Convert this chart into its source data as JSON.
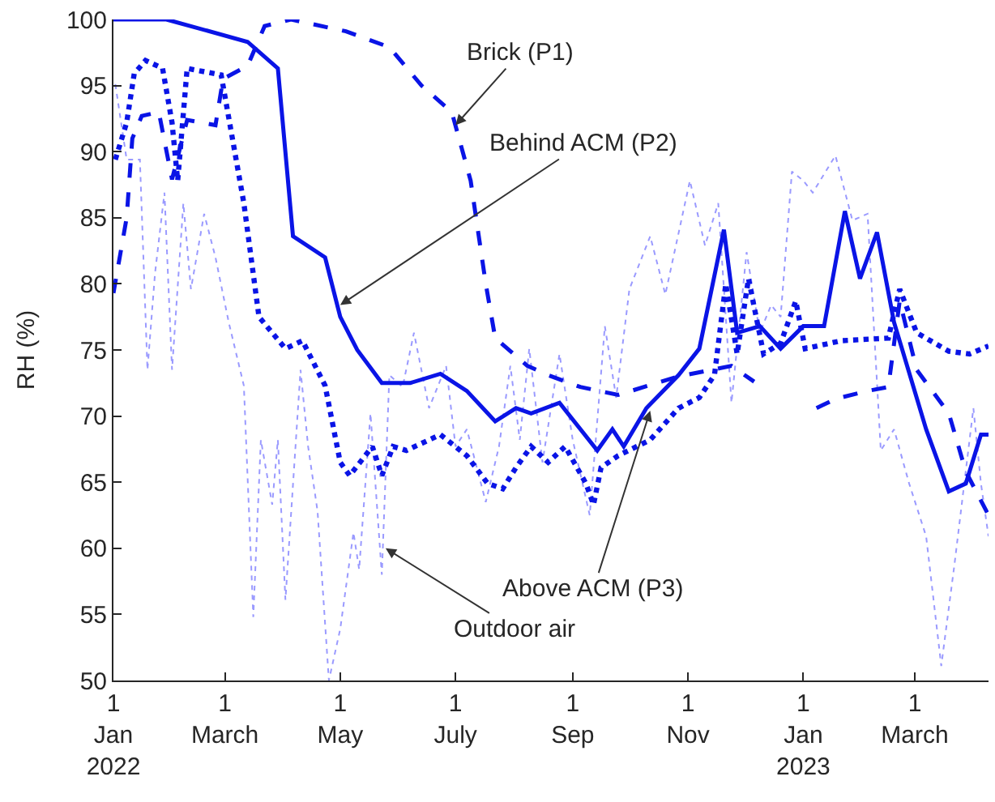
{
  "chart_data": {
    "type": "line",
    "ylabel": "RH (%)",
    "xlim": [
      "2022-01-01",
      "2023-04-09"
    ],
    "xticks": [
      {
        "value": "2022-01-01",
        "label": "1\nJan\n2022"
      },
      {
        "value": "2022-03-01",
        "label": "1\nMarch"
      },
      {
        "value": "2022-05-01",
        "label": "1\nMay"
      },
      {
        "value": "2022-07-01",
        "label": "1\nJuly"
      },
      {
        "value": "2022-09-01",
        "label": "1\nSep"
      },
      {
        "value": "2022-11-01",
        "label": "1\nNov"
      },
      {
        "value": "2023-01-01",
        "label": "1\nJan\n2023"
      },
      {
        "value": "2023-03-01",
        "label": "1\nMarch"
      }
    ],
    "ylim": [
      50,
      100
    ],
    "yticks": [
      50,
      55,
      60,
      65,
      70,
      75,
      80,
      85,
      90,
      95,
      100
    ],
    "marker": "none",
    "series": [
      {
        "color": "#9a9aff",
        "line_style": "dotted",
        "x": [
          "2022-01-02",
          "2022-01-08",
          "2022-01-15",
          "2022-01-19",
          "2022-01-23",
          "2022-01-28",
          "2022-02-01",
          "2022-02-07",
          "2022-02-11",
          "2022-02-18",
          "2022-02-24",
          "2022-03-03",
          "2022-03-11",
          "2022-03-16",
          "2022-03-20",
          "2022-03-26",
          "2022-03-29",
          "2022-04-02",
          "2022-04-10",
          "2022-04-14",
          "2022-04-19",
          "2022-04-25",
          "2022-05-01",
          "2022-05-08",
          "2022-05-11",
          "2022-05-17",
          "2022-05-23",
          "2022-05-27",
          "2022-06-03",
          "2022-06-09",
          "2022-06-17",
          "2022-06-26",
          "2022-07-01",
          "2022-07-07",
          "2022-07-17",
          "2022-07-24",
          "2022-07-30",
          "2022-08-04",
          "2022-08-09",
          "2022-08-16",
          "2022-08-25",
          "2022-09-01",
          "2022-09-10",
          "2022-09-18",
          "2022-09-24",
          "2022-10-01",
          "2022-10-12",
          "2022-10-20",
          "2022-11-02",
          "2022-11-10",
          "2022-11-17",
          "2022-11-24",
          "2022-12-02",
          "2022-12-09",
          "2022-12-15",
          "2022-12-20",
          "2022-12-26",
          "2023-01-01",
          "2023-01-06",
          "2023-01-18",
          "2023-01-27",
          "2023-02-04",
          "2023-02-11",
          "2023-02-18",
          "2023-02-26",
          "2023-03-07",
          "2023-03-15",
          "2023-03-22",
          "2023-04-01",
          "2023-04-05",
          "2023-04-09"
        ],
        "values": [
          95.1,
          89.4,
          89.4,
          73.5,
          80.8,
          86.9,
          73.5,
          86.1,
          79.6,
          85.3,
          82,
          77.1,
          72.3,
          54.8,
          68.2,
          63.3,
          68.2,
          56.1,
          73.5,
          67.7,
          62.8,
          50,
          53.9,
          61.2,
          58.4,
          70.2,
          58,
          73.1,
          72.2,
          76.3,
          70.6,
          73.8,
          67.7,
          69,
          63.5,
          67.7,
          73.8,
          68.2,
          75.1,
          66.5,
          74.7,
          68.2,
          62.5,
          76.8,
          71.4,
          79.6,
          83.6,
          79.2,
          87.8,
          82.9,
          86.1,
          71,
          82.4,
          76.3,
          78.4,
          77.5,
          88.5,
          87.8,
          86.9,
          89.7,
          84.8,
          85.3,
          67.4,
          69,
          64.9,
          60.9,
          51.1,
          58.8,
          70.6,
          64.9,
          60.9
        ]
      },
      {
        "color": "#0a14e6",
        "line_style": "dashed",
        "x": [
          "2022-01-01",
          "2022-01-08",
          "2022-01-11",
          "2022-01-16",
          "2022-01-25",
          "2022-02-01",
          "2022-02-09",
          "2022-02-24",
          "2022-02-28",
          "2022-03-13",
          "2022-03-22",
          "2022-04-05",
          "2022-05-04",
          "2022-05-27",
          "2022-06-13",
          "2022-06-29",
          "2022-07-09",
          "2022-07-17",
          "2022-07-22",
          "2022-08-08",
          "2022-08-19",
          "2022-09-05",
          "2022-09-25",
          "2022-10-27",
          "2022-11-24",
          "2022-12-06",
          "2022-12-20",
          "2023-01-08",
          "2023-01-18",
          "2023-02-04",
          "2023-02-15",
          "2023-02-21",
          "2023-03-02",
          "2023-03-19",
          "2023-03-28",
          "2023-04-09"
        ],
        "values": [
          79.3,
          85,
          91,
          92.7,
          93,
          87.9,
          92.4,
          92,
          95.5,
          96.5,
          99.5,
          100,
          99.1,
          97.9,
          95,
          93,
          87.8,
          80,
          75.9,
          73.8,
          73.1,
          72.2,
          71.6,
          73,
          73.8,
          72.6,
          null,
          70.6,
          71.3,
          71.9,
          72.2,
          78.7,
          73.5,
          70.2,
          65.8,
          62.5
        ]
      },
      {
        "color": "#0a14e6",
        "line_style": "solid",
        "x": [
          "2022-01-01",
          "2022-01-29",
          "2022-03-13",
          "2022-03-29",
          "2022-04-06",
          "2022-04-23",
          "2022-05-01",
          "2022-05-10",
          "2022-05-23",
          "2022-06-07",
          "2022-06-23",
          "2022-07-07",
          "2022-07-22",
          "2022-08-02",
          "2022-08-10",
          "2022-08-25",
          "2022-09-14",
          "2022-09-22",
          "2022-09-28",
          "2022-10-10",
          "2022-10-27",
          "2022-11-07",
          "2022-11-20",
          "2022-11-27",
          "2022-12-09",
          "2022-12-20",
          "2023-01-01",
          "2023-01-12",
          "2023-01-23",
          "2023-01-31",
          "2023-02-09",
          "2023-02-18",
          "2023-03-07",
          "2023-03-19",
          "2023-03-28",
          "2023-04-05",
          "2023-04-09"
        ],
        "values": [
          100,
          100,
          98.3,
          96.3,
          83.6,
          82,
          77.5,
          75,
          72.5,
          72.5,
          73.2,
          71.9,
          69.6,
          70.6,
          70.2,
          71,
          67.4,
          69,
          67.7,
          70.6,
          73.1,
          75.1,
          84.1,
          76.3,
          76.8,
          75.1,
          76.8,
          76.8,
          85.5,
          80.4,
          83.9,
          77.1,
          69,
          64.3,
          64.9,
          68.6,
          68.6
        ]
      },
      {
        "color": "#0a14e6",
        "line_style": "dotted",
        "x": [
          "2022-01-02",
          "2022-01-08",
          "2022-01-12",
          "2022-01-18",
          "2022-01-27",
          "2022-02-01",
          "2022-02-04",
          "2022-02-09",
          "2022-02-27",
          "2022-03-11",
          "2022-03-19",
          "2022-04-02",
          "2022-04-11",
          "2022-04-23",
          "2022-05-01",
          "2022-05-06",
          "2022-05-18",
          "2022-05-23",
          "2022-05-29",
          "2022-06-05",
          "2022-06-23",
          "2022-07-07",
          "2022-07-18",
          "2022-07-26",
          "2022-08-02",
          "2022-08-10",
          "2022-08-19",
          "2022-08-28",
          "2022-09-08",
          "2022-09-12",
          "2022-09-16",
          "2022-09-25",
          "2022-10-12",
          "2022-10-27",
          "2022-11-07",
          "2022-11-15",
          "2022-11-21",
          "2022-11-27",
          "2022-12-03",
          "2022-12-11",
          "2022-12-20",
          "2022-12-28",
          "2023-01-02",
          "2023-01-21",
          "2023-02-15",
          "2023-02-21",
          "2023-03-02",
          "2023-03-19",
          "2023-03-30",
          "2023-04-09"
        ],
        "values": [
          89.4,
          92.2,
          95.9,
          96.9,
          96.3,
          92.2,
          87.8,
          96.3,
          95.8,
          86.1,
          77.5,
          75.1,
          75.7,
          72.3,
          66.5,
          65.5,
          67.7,
          65.5,
          67.7,
          67.4,
          68.6,
          67,
          64.9,
          64.5,
          66.1,
          67.7,
          66.5,
          67.7,
          64.9,
          63.3,
          66.1,
          67,
          68.2,
          70.6,
          71.4,
          73.1,
          80,
          74.7,
          80.4,
          74.7,
          75.5,
          78.7,
          75.1,
          75.7,
          75.9,
          79.6,
          76.3,
          74.9,
          74.7,
          75.3
        ]
      }
    ],
    "annotations": [
      {
        "text": "Brick (P1)",
        "x": "2022-07-01",
        "y": 92
      },
      {
        "text": "Behind ACM (P2)",
        "x": "2022-05-01",
        "y": 78.4
      },
      {
        "text": "Above ACM (P3)",
        "x": "2022-10-12",
        "y": 70.4
      },
      {
        "text": "Outdoor air",
        "x": "2022-05-25",
        "y": 60
      }
    ]
  }
}
